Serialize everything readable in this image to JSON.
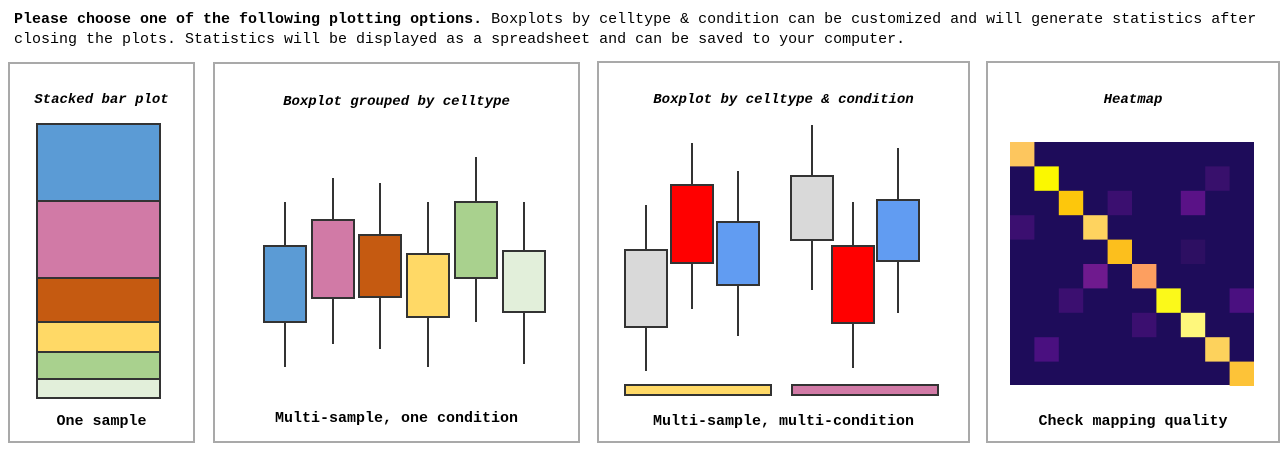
{
  "intro": {
    "bold": "Please choose one of the following plotting options.",
    "rest": " Boxplots by celltype & condition can be customized and will generate statistics after closing the plots. Statistics will be displayed as a spreadsheet and can be saved to your computer."
  },
  "colors": {
    "border": "#a9a9a9",
    "blue": "#5b9bd5",
    "pink": "#d17aa6",
    "orange": "#c55a11",
    "yellow": "#ffd966",
    "green": "#a9d18e",
    "pale_green": "#e2efda",
    "light_gray": "#d9d9d9",
    "red": "#ff0000",
    "cornflower": "#619cf2"
  },
  "options": [
    {
      "title": "Stacked bar plot",
      "caption": "One sample",
      "icon": "stacked-bar-plot-icon"
    },
    {
      "title": "Boxplot grouped by celltype",
      "caption": "Multi-sample, one condition",
      "icon": "boxplot-grouped-icon"
    },
    {
      "title": "Boxplot by celltype & condition",
      "caption": "Multi-sample, multi-condition",
      "icon": "boxplot-condition-icon"
    },
    {
      "title": "Heatmap",
      "caption": "Check mapping quality",
      "icon": "heatmap-icon"
    }
  ]
}
